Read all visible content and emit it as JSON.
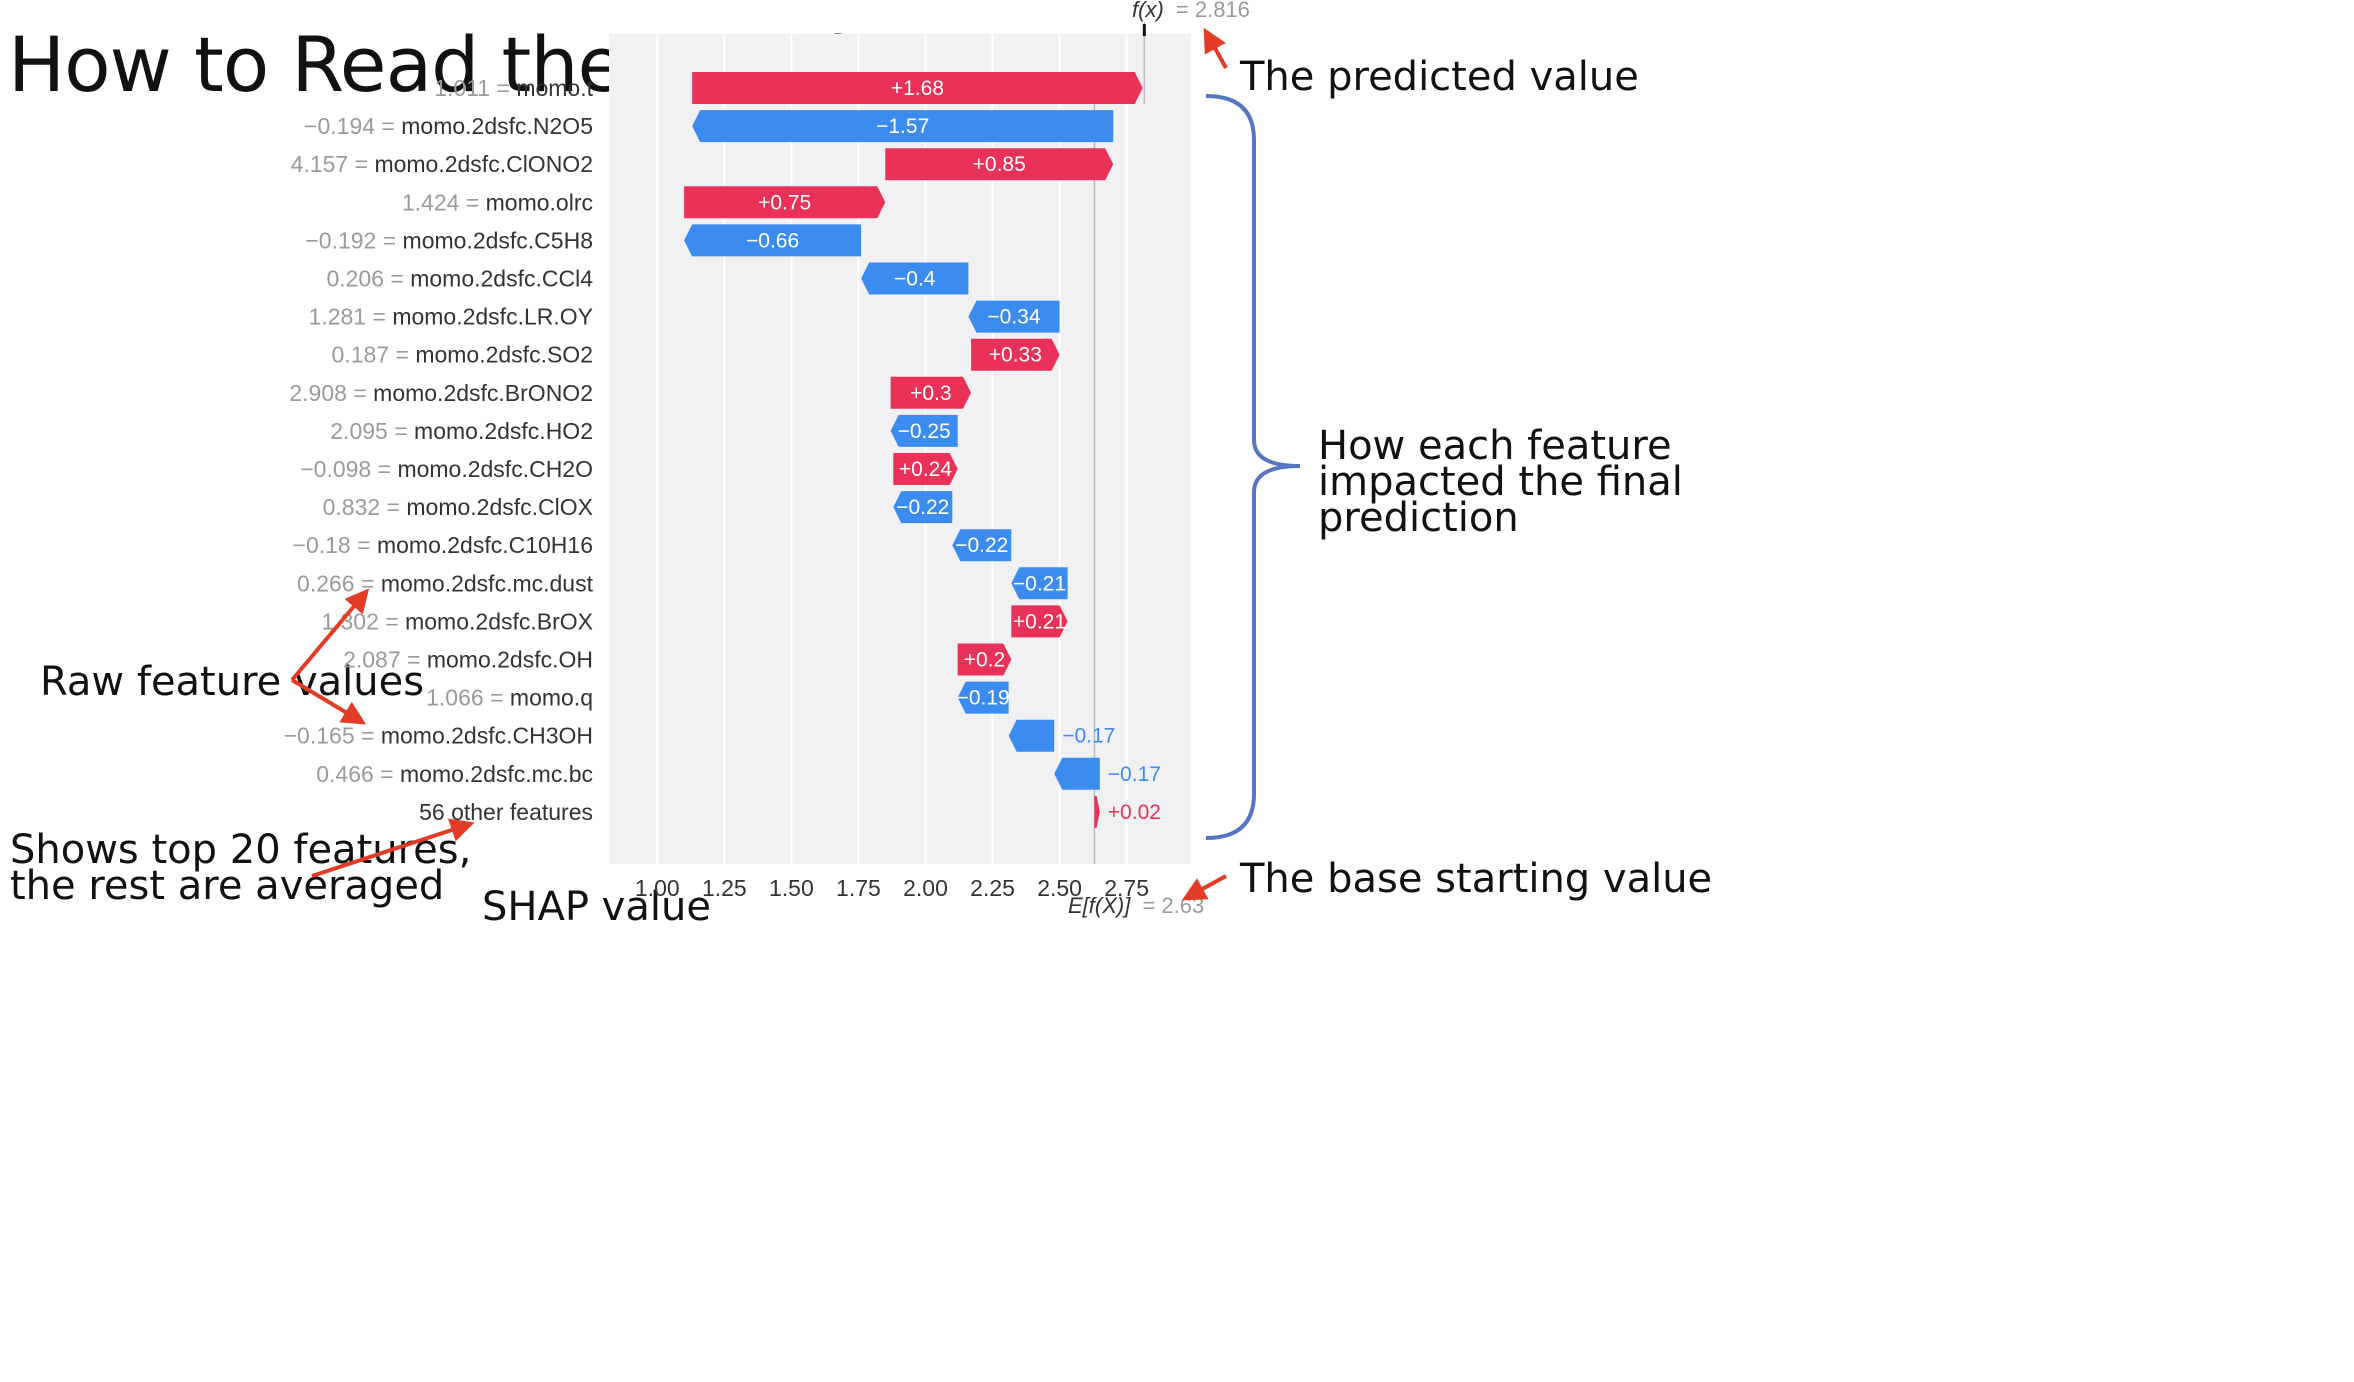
{
  "slide": {
    "title": "How to Read the Graph",
    "callouts": {
      "predicted": "The predicted value",
      "impact": [
        "How each feature",
        "impacted the final",
        "prediction"
      ],
      "raw_values": "Raw feature values",
      "top20": [
        "Shows top 20 features,",
        "the rest are averaged"
      ],
      "base": "The base starting value",
      "shap_value": "SHAP value"
    }
  },
  "chart_data": {
    "type": "waterfall",
    "base_value": 2.63,
    "predicted_value": 2.816,
    "fx_label": "f(x)",
    "fx_value_text": "= 2.816",
    "efx_label": "E[f(X)]",
    "efx_value_text": "= 2.63",
    "x_ticks": [
      1.0,
      1.25,
      1.5,
      1.75,
      2.0,
      2.25,
      2.5,
      2.75
    ],
    "x_tick_labels": [
      "1.00",
      "1.25",
      "1.50",
      "1.75",
      "2.00",
      "2.25",
      "2.50",
      "2.75"
    ],
    "xlim": [
      0.82,
      2.99
    ],
    "features": [
      {
        "value": "1.011 =",
        "name": "momo.t",
        "shap": 1.68,
        "label": "+1.68"
      },
      {
        "value": "−0.194 =",
        "name": "momo.2dsfc.N2O5",
        "shap": -1.57,
        "label": "−1.57"
      },
      {
        "value": "4.157 =",
        "name": "momo.2dsfc.ClONO2",
        "shap": 0.85,
        "label": "+0.85"
      },
      {
        "value": "1.424 =",
        "name": "momo.olrc",
        "shap": 0.75,
        "label": "+0.75"
      },
      {
        "value": "−0.192 =",
        "name": "momo.2dsfc.C5H8",
        "shap": -0.66,
        "label": "−0.66"
      },
      {
        "value": "0.206 =",
        "name": "momo.2dsfc.CCl4",
        "shap": -0.4,
        "label": "−0.4"
      },
      {
        "value": "1.281 =",
        "name": "momo.2dsfc.LR.OY",
        "shap": -0.34,
        "label": "−0.34"
      },
      {
        "value": "0.187 =",
        "name": "momo.2dsfc.SO2",
        "shap": 0.33,
        "label": "+0.33"
      },
      {
        "value": "2.908 =",
        "name": "momo.2dsfc.BrONO2",
        "shap": 0.3,
        "label": "+0.3"
      },
      {
        "value": "2.095 =",
        "name": "momo.2dsfc.HO2",
        "shap": -0.25,
        "label": "−0.25"
      },
      {
        "value": "−0.098 =",
        "name": "momo.2dsfc.CH2O",
        "shap": 0.24,
        "label": "+0.24"
      },
      {
        "value": "0.832 =",
        "name": "momo.2dsfc.ClOX",
        "shap": -0.22,
        "label": "−0.22"
      },
      {
        "value": "−0.18 =",
        "name": "momo.2dsfc.C10H16",
        "shap": -0.22,
        "label": "−0.22"
      },
      {
        "value": "0.266 =",
        "name": "momo.2dsfc.mc.dust",
        "shap": -0.21,
        "label": "−0.21"
      },
      {
        "value": "1.302 =",
        "name": "momo.2dsfc.BrOX",
        "shap": 0.21,
        "label": "+0.21"
      },
      {
        "value": "2.087 =",
        "name": "momo.2dsfc.OH",
        "shap": 0.2,
        "label": "+0.2"
      },
      {
        "value": "1.066 =",
        "name": "momo.q",
        "shap": -0.19,
        "label": "−0.19"
      },
      {
        "value": "−0.165 =",
        "name": "momo.2dsfc.CH3OH",
        "shap": -0.17,
        "label": "−0.17"
      },
      {
        "value": "0.466 =",
        "name": "momo.2dsfc.mc.bc",
        "shap": -0.17,
        "label": "−0.17"
      },
      {
        "value": "",
        "name": "56 other features",
        "shap": 0.02,
        "label": "+0.02"
      }
    ],
    "colors": {
      "positive": "#ea3258",
      "negative": "#3c8cf0",
      "plot_bg": "#f1f1f3",
      "grid": "#ffffff",
      "annotation_arrow": "#e23b26",
      "brace": "#5676c2"
    }
  }
}
